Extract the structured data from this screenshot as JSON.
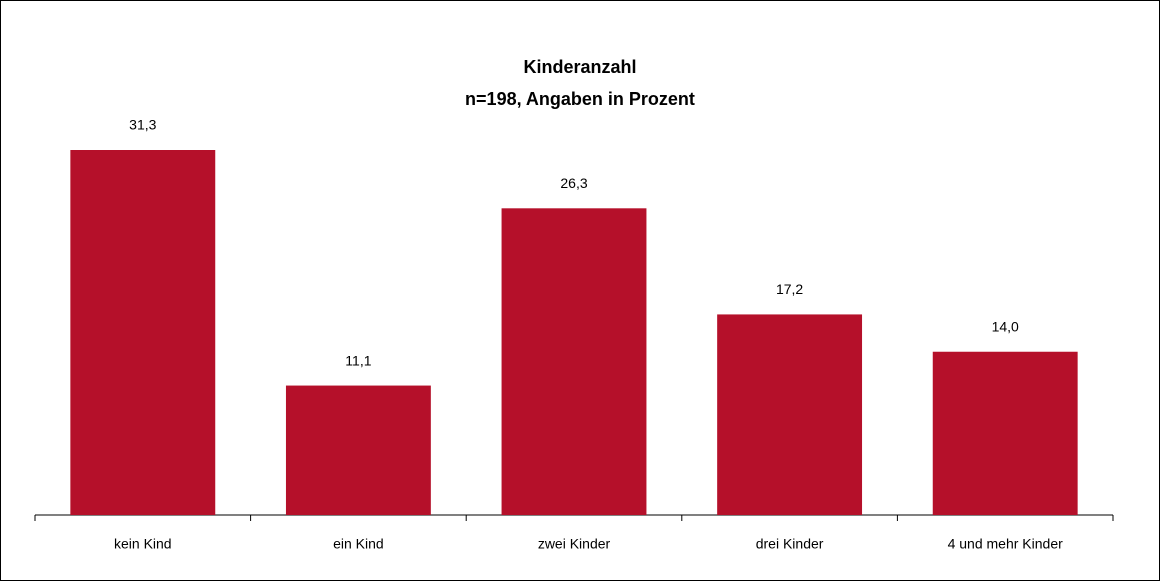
{
  "chart_data": {
    "type": "bar",
    "title": "Kinderanzahl",
    "subtitle": "n=198, Angaben in Prozent",
    "categories": [
      "kein Kind",
      "ein Kind",
      "zwei Kinder",
      "drei Kinder",
      "4 und mehr Kinder"
    ],
    "values": [
      31.3,
      11.1,
      26.3,
      17.2,
      14.0
    ],
    "value_labels": [
      "31,3",
      "11,1",
      "26,3",
      "17,2",
      "14,0"
    ],
    "color": "#b5102a"
  }
}
